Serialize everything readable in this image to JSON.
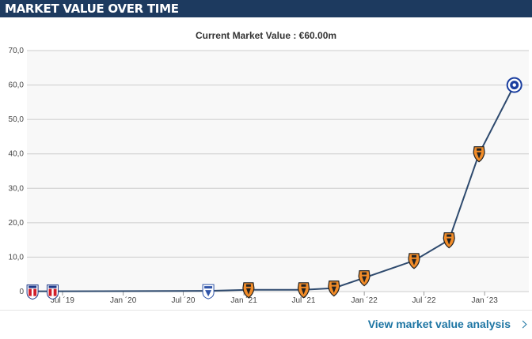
{
  "header": {
    "title": "MARKET VALUE OVER TIME"
  },
  "subtitle": "Current Market Value : €60.00m",
  "footer": {
    "link_label": "View market value analysis",
    "link_icon": "chevron-right-icon"
  },
  "colors": {
    "header_bg": "#1d3a5f",
    "line": "#2e4a6e",
    "link": "#1d75a3",
    "grid": "#cccccc",
    "plot_bg": "#f8f8f8"
  },
  "chart_data": {
    "type": "line",
    "title": "",
    "xlabel": "",
    "ylabel": "",
    "ylim": [
      0,
      70
    ],
    "yticks": [
      "0",
      "10,0",
      "20,0",
      "30,0",
      "40,0",
      "50,0",
      "60,0",
      "70,0"
    ],
    "xticks": [
      {
        "date": "2019-07-01",
        "label": "Jul ´19"
      },
      {
        "date": "2020-01-01",
        "label": "Jan ´20"
      },
      {
        "date": "2020-07-01",
        "label": "Jul ´20"
      },
      {
        "date": "2021-01-01",
        "label": "Jan ´21"
      },
      {
        "date": "2021-07-01",
        "label": "Jul ´21"
      },
      {
        "date": "2022-01-01",
        "label": "Jan ´22"
      },
      {
        "date": "2022-07-01",
        "label": "Jul ´22"
      },
      {
        "date": "2023-01-01",
        "label": "Jan ´23"
      }
    ],
    "xrange": [
      "2019-03-15",
      "2023-05-15"
    ],
    "grid": true,
    "series": [
      {
        "points": [
          {
            "date": "2019-04-01",
            "value": 0.1,
            "club_icon": "sunderland-crest-icon"
          },
          {
            "date": "2019-06-01",
            "value": 0.1,
            "club_icon": "sunderland-crest-icon"
          },
          {
            "date": "2020-09-15",
            "value": 0.2,
            "club_icon": "desna-crest-icon"
          },
          {
            "date": "2021-01-15",
            "value": 0.5,
            "club_icon": "shakhtar-crest-icon"
          },
          {
            "date": "2021-07-01",
            "value": 0.5,
            "club_icon": "shakhtar-crest-icon"
          },
          {
            "date": "2021-10-01",
            "value": 1.0,
            "club_icon": "shakhtar-crest-icon"
          },
          {
            "date": "2022-01-01",
            "value": 4.0,
            "club_icon": "shakhtar-crest-icon"
          },
          {
            "date": "2022-06-01",
            "value": 9.0,
            "club_icon": "shakhtar-crest-icon"
          },
          {
            "date": "2022-09-15",
            "value": 15.0,
            "club_icon": "shakhtar-crest-icon"
          },
          {
            "date": "2022-12-15",
            "value": 40.0,
            "club_icon": "shakhtar-crest-icon"
          },
          {
            "date": "2023-04-01",
            "value": 60.0,
            "club_icon": "chelsea-crest-icon"
          }
        ]
      }
    ]
  }
}
